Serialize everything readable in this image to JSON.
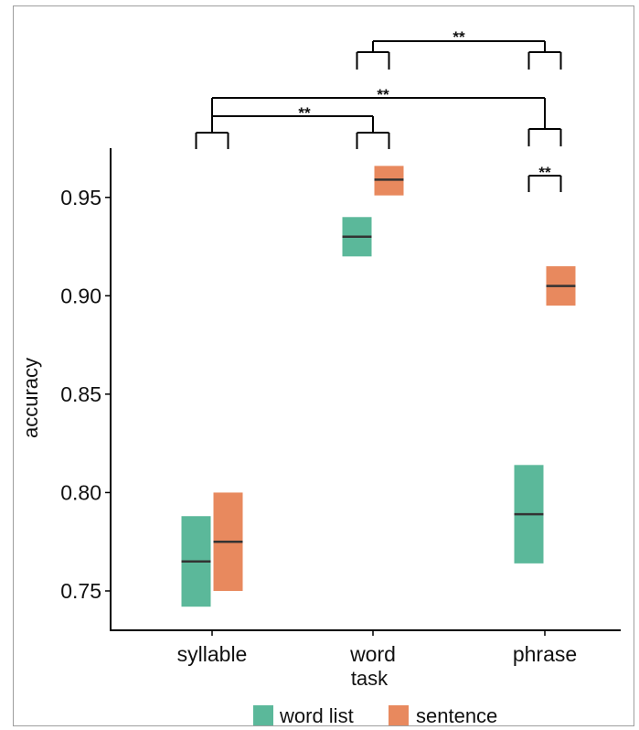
{
  "chart_data": {
    "type": "crossbar",
    "xlabel": "task",
    "ylabel": "accuracy",
    "categories": [
      "syllable",
      "word",
      "phrase"
    ],
    "ylim": [
      0.73,
      0.975
    ],
    "yticks": [
      0.75,
      0.8,
      0.85,
      0.9,
      0.95
    ],
    "ytick_labels": [
      "0.75",
      "0.80",
      "0.85",
      "0.90",
      "0.95"
    ],
    "grid": false,
    "legend_position": "bottom",
    "series": [
      {
        "name": "word list",
        "color": "#5bb89a",
        "values": [
          {
            "category": "syllable",
            "mean": 0.765,
            "lower": 0.742,
            "upper": 0.788
          },
          {
            "category": "word",
            "mean": 0.93,
            "lower": 0.92,
            "upper": 0.94
          },
          {
            "category": "phrase",
            "mean": 0.789,
            "lower": 0.764,
            "upper": 0.814
          }
        ]
      },
      {
        "name": "sentence",
        "color": "#e8895e",
        "values": [
          {
            "category": "syllable",
            "mean": 0.775,
            "lower": 0.75,
            "upper": 0.8
          },
          {
            "category": "word",
            "mean": 0.959,
            "lower": 0.951,
            "upper": 0.966
          },
          {
            "category": "phrase",
            "mean": 0.905,
            "lower": 0.895,
            "upper": 0.915
          }
        ]
      }
    ],
    "annotations": [
      {
        "label": "**",
        "type": "group",
        "from": "word",
        "to": "phrase",
        "level": 1
      },
      {
        "label": "**",
        "type": "group",
        "from": "syllable",
        "to": "phrase",
        "level": 2
      },
      {
        "label": "**",
        "type": "group",
        "from": "syllable",
        "to": "word",
        "level": 3
      },
      {
        "label": "**",
        "type": "pair",
        "category": "phrase"
      }
    ]
  }
}
